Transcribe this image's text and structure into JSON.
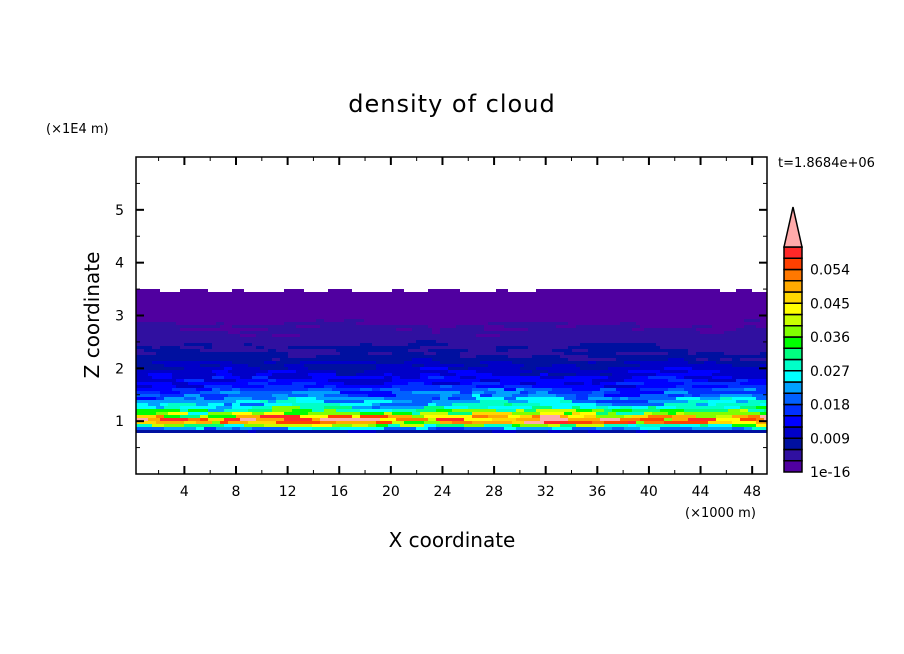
{
  "chart_data": {
    "type": "heatmap",
    "title": "density of cloud",
    "xlabel": "X coordinate",
    "ylabel": "Z coordinate",
    "x_unit": "(×1000 m)",
    "y_unit": "(×1E4 m)",
    "time_label": "t=1.8684e+06",
    "xlim": [
      0.25,
      49.15
    ],
    "ylim": [
      0,
      6
    ],
    "x_ticks": [
      4,
      8,
      12,
      16,
      20,
      24,
      28,
      32,
      36,
      40,
      44,
      48
    ],
    "y_ticks": [
      1,
      2,
      3,
      4,
      5
    ],
    "colorbar": {
      "levels_min": 0,
      "levels_max": 0.06,
      "level_step": 0.003,
      "tick_labels": [
        "1e-16",
        "0.009",
        "0.018",
        "0.027",
        "0.036",
        "0.045",
        "0.054"
      ],
      "extend": "max",
      "over_color": "#ffaaaa",
      "colors": [
        "#5000a0",
        "#3010a0",
        "#0010a0",
        "#0000c8",
        "#0000ff",
        "#0030ff",
        "#0060ff",
        "#00a0ff",
        "#00ffff",
        "#00ffc8",
        "#00ff80",
        "#00ff00",
        "#80ff00",
        "#c8ff00",
        "#ffff00",
        "#ffd700",
        "#ffaa00",
        "#ff7800",
        "#ff4000",
        "#ff2828"
      ]
    },
    "mean_vertical_profile": {
      "z": [
        0.78,
        0.85,
        0.92,
        0.97,
        1.03,
        1.1,
        1.18,
        1.3,
        1.5,
        1.7,
        1.9,
        2.2,
        2.5,
        2.8,
        3.0,
        3.3,
        3.5
      ],
      "density": [
        0.002,
        0.02,
        0.035,
        0.05,
        0.056,
        0.045,
        0.033,
        0.025,
        0.019,
        0.014,
        0.011,
        0.007,
        0.005,
        0.003,
        0.002,
        0.001,
        0.0005
      ]
    },
    "cloud_base_z": 0.78,
    "cloud_top_z": 3.5
  }
}
